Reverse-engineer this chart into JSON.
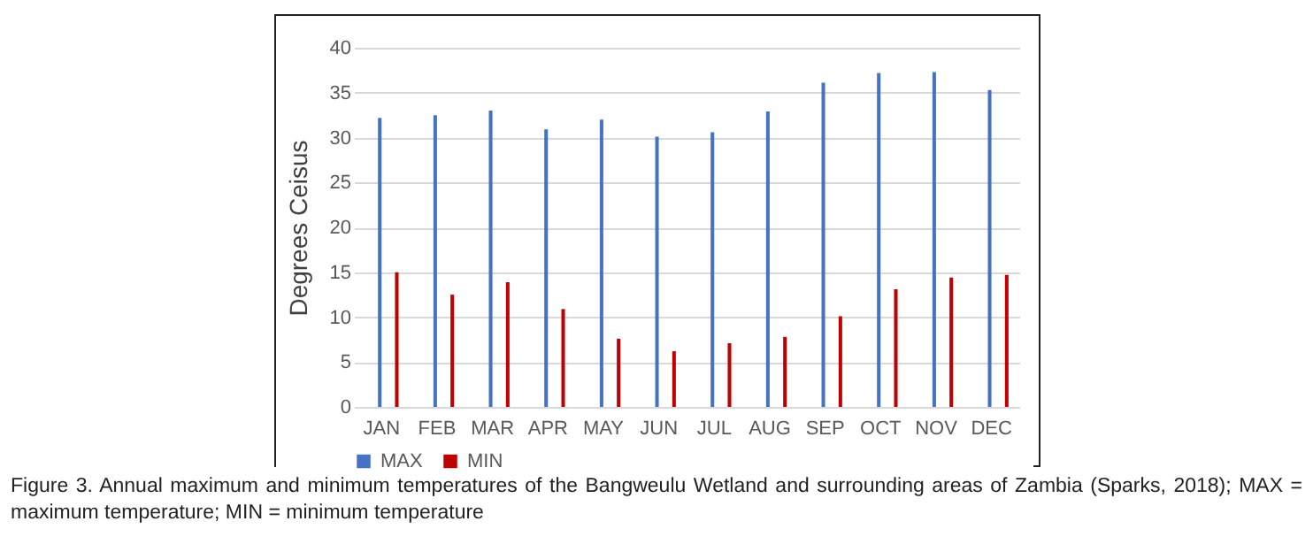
{
  "chart_data": {
    "type": "bar",
    "ylabel": "Degrees Ceisus",
    "categories": [
      "JAN",
      "FEB",
      "MAR",
      "APR",
      "MAY",
      "JUN",
      "JUL",
      "AUG",
      "SEP",
      "OCT",
      "NOV",
      "DEC"
    ],
    "series": [
      {
        "name": "MAX",
        "color": "#4472c4",
        "values": [
          32.2,
          32.5,
          33.0,
          30.9,
          32.0,
          30.1,
          30.6,
          32.9,
          36.1,
          37.2,
          37.3,
          35.3
        ]
      },
      {
        "name": "MIN",
        "color": "#c00000",
        "values": [
          15.0,
          12.5,
          13.9,
          10.9,
          7.6,
          6.2,
          7.1,
          7.8,
          10.1,
          13.1,
          14.4,
          14.7
        ]
      }
    ],
    "ylim": [
      0,
      40
    ],
    "yticks": [
      0,
      5,
      10,
      15,
      20,
      25,
      30,
      35,
      40
    ],
    "grid": "y",
    "legend": "bottom",
    "annotations": [
      "Figure 3. Annual maximum and minimum temperatures of the Bangweulu Wetland and surrounding areas of Zambia (Sparks, 2018); MAX = maximum temperature; MIN = minimum temperature"
    ]
  }
}
